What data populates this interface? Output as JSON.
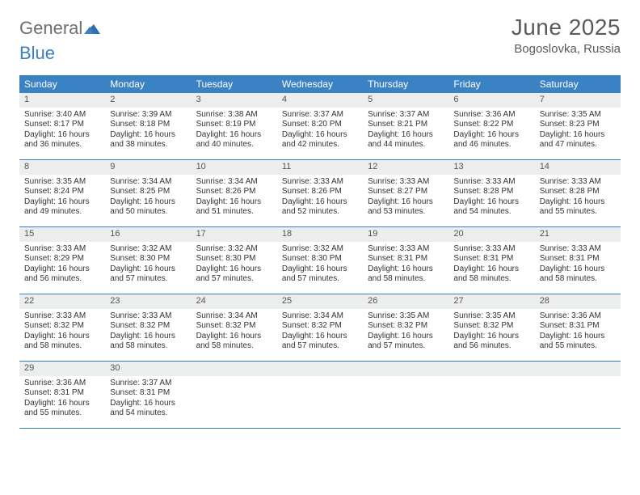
{
  "logo": {
    "word1": "General",
    "word2": "Blue"
  },
  "title": "June 2025",
  "location": "Bogoslovka, Russia",
  "colors": {
    "header_bg": "#3b82c4",
    "rule": "#3b7fc4",
    "daynum_bg": "#eceded",
    "text": "#333333",
    "logo_gray": "#6d6e71",
    "logo_blue": "#3b7fc4"
  },
  "day_headers": [
    "Sunday",
    "Monday",
    "Tuesday",
    "Wednesday",
    "Thursday",
    "Friday",
    "Saturday"
  ],
  "weeks": [
    [
      {
        "n": "1",
        "sunrise": "Sunrise: 3:40 AM",
        "sunset": "Sunset: 8:17 PM",
        "daylight": "Daylight: 16 hours and 36 minutes."
      },
      {
        "n": "2",
        "sunrise": "Sunrise: 3:39 AM",
        "sunset": "Sunset: 8:18 PM",
        "daylight": "Daylight: 16 hours and 38 minutes."
      },
      {
        "n": "3",
        "sunrise": "Sunrise: 3:38 AM",
        "sunset": "Sunset: 8:19 PM",
        "daylight": "Daylight: 16 hours and 40 minutes."
      },
      {
        "n": "4",
        "sunrise": "Sunrise: 3:37 AM",
        "sunset": "Sunset: 8:20 PM",
        "daylight": "Daylight: 16 hours and 42 minutes."
      },
      {
        "n": "5",
        "sunrise": "Sunrise: 3:37 AM",
        "sunset": "Sunset: 8:21 PM",
        "daylight": "Daylight: 16 hours and 44 minutes."
      },
      {
        "n": "6",
        "sunrise": "Sunrise: 3:36 AM",
        "sunset": "Sunset: 8:22 PM",
        "daylight": "Daylight: 16 hours and 46 minutes."
      },
      {
        "n": "7",
        "sunrise": "Sunrise: 3:35 AM",
        "sunset": "Sunset: 8:23 PM",
        "daylight": "Daylight: 16 hours and 47 minutes."
      }
    ],
    [
      {
        "n": "8",
        "sunrise": "Sunrise: 3:35 AM",
        "sunset": "Sunset: 8:24 PM",
        "daylight": "Daylight: 16 hours and 49 minutes."
      },
      {
        "n": "9",
        "sunrise": "Sunrise: 3:34 AM",
        "sunset": "Sunset: 8:25 PM",
        "daylight": "Daylight: 16 hours and 50 minutes."
      },
      {
        "n": "10",
        "sunrise": "Sunrise: 3:34 AM",
        "sunset": "Sunset: 8:26 PM",
        "daylight": "Daylight: 16 hours and 51 minutes."
      },
      {
        "n": "11",
        "sunrise": "Sunrise: 3:33 AM",
        "sunset": "Sunset: 8:26 PM",
        "daylight": "Daylight: 16 hours and 52 minutes."
      },
      {
        "n": "12",
        "sunrise": "Sunrise: 3:33 AM",
        "sunset": "Sunset: 8:27 PM",
        "daylight": "Daylight: 16 hours and 53 minutes."
      },
      {
        "n": "13",
        "sunrise": "Sunrise: 3:33 AM",
        "sunset": "Sunset: 8:28 PM",
        "daylight": "Daylight: 16 hours and 54 minutes."
      },
      {
        "n": "14",
        "sunrise": "Sunrise: 3:33 AM",
        "sunset": "Sunset: 8:28 PM",
        "daylight": "Daylight: 16 hours and 55 minutes."
      }
    ],
    [
      {
        "n": "15",
        "sunrise": "Sunrise: 3:33 AM",
        "sunset": "Sunset: 8:29 PM",
        "daylight": "Daylight: 16 hours and 56 minutes."
      },
      {
        "n": "16",
        "sunrise": "Sunrise: 3:32 AM",
        "sunset": "Sunset: 8:30 PM",
        "daylight": "Daylight: 16 hours and 57 minutes."
      },
      {
        "n": "17",
        "sunrise": "Sunrise: 3:32 AM",
        "sunset": "Sunset: 8:30 PM",
        "daylight": "Daylight: 16 hours and 57 minutes."
      },
      {
        "n": "18",
        "sunrise": "Sunrise: 3:32 AM",
        "sunset": "Sunset: 8:30 PM",
        "daylight": "Daylight: 16 hours and 57 minutes."
      },
      {
        "n": "19",
        "sunrise": "Sunrise: 3:33 AM",
        "sunset": "Sunset: 8:31 PM",
        "daylight": "Daylight: 16 hours and 58 minutes."
      },
      {
        "n": "20",
        "sunrise": "Sunrise: 3:33 AM",
        "sunset": "Sunset: 8:31 PM",
        "daylight": "Daylight: 16 hours and 58 minutes."
      },
      {
        "n": "21",
        "sunrise": "Sunrise: 3:33 AM",
        "sunset": "Sunset: 8:31 PM",
        "daylight": "Daylight: 16 hours and 58 minutes."
      }
    ],
    [
      {
        "n": "22",
        "sunrise": "Sunrise: 3:33 AM",
        "sunset": "Sunset: 8:32 PM",
        "daylight": "Daylight: 16 hours and 58 minutes."
      },
      {
        "n": "23",
        "sunrise": "Sunrise: 3:33 AM",
        "sunset": "Sunset: 8:32 PM",
        "daylight": "Daylight: 16 hours and 58 minutes."
      },
      {
        "n": "24",
        "sunrise": "Sunrise: 3:34 AM",
        "sunset": "Sunset: 8:32 PM",
        "daylight": "Daylight: 16 hours and 58 minutes."
      },
      {
        "n": "25",
        "sunrise": "Sunrise: 3:34 AM",
        "sunset": "Sunset: 8:32 PM",
        "daylight": "Daylight: 16 hours and 57 minutes."
      },
      {
        "n": "26",
        "sunrise": "Sunrise: 3:35 AM",
        "sunset": "Sunset: 8:32 PM",
        "daylight": "Daylight: 16 hours and 57 minutes."
      },
      {
        "n": "27",
        "sunrise": "Sunrise: 3:35 AM",
        "sunset": "Sunset: 8:32 PM",
        "daylight": "Daylight: 16 hours and 56 minutes."
      },
      {
        "n": "28",
        "sunrise": "Sunrise: 3:36 AM",
        "sunset": "Sunset: 8:31 PM",
        "daylight": "Daylight: 16 hours and 55 minutes."
      }
    ],
    [
      {
        "n": "29",
        "sunrise": "Sunrise: 3:36 AM",
        "sunset": "Sunset: 8:31 PM",
        "daylight": "Daylight: 16 hours and 55 minutes."
      },
      {
        "n": "30",
        "sunrise": "Sunrise: 3:37 AM",
        "sunset": "Sunset: 8:31 PM",
        "daylight": "Daylight: 16 hours and 54 minutes."
      },
      {
        "n": "",
        "empty": true
      },
      {
        "n": "",
        "empty": true
      },
      {
        "n": "",
        "empty": true
      },
      {
        "n": "",
        "empty": true
      },
      {
        "n": "",
        "empty": true
      }
    ]
  ]
}
